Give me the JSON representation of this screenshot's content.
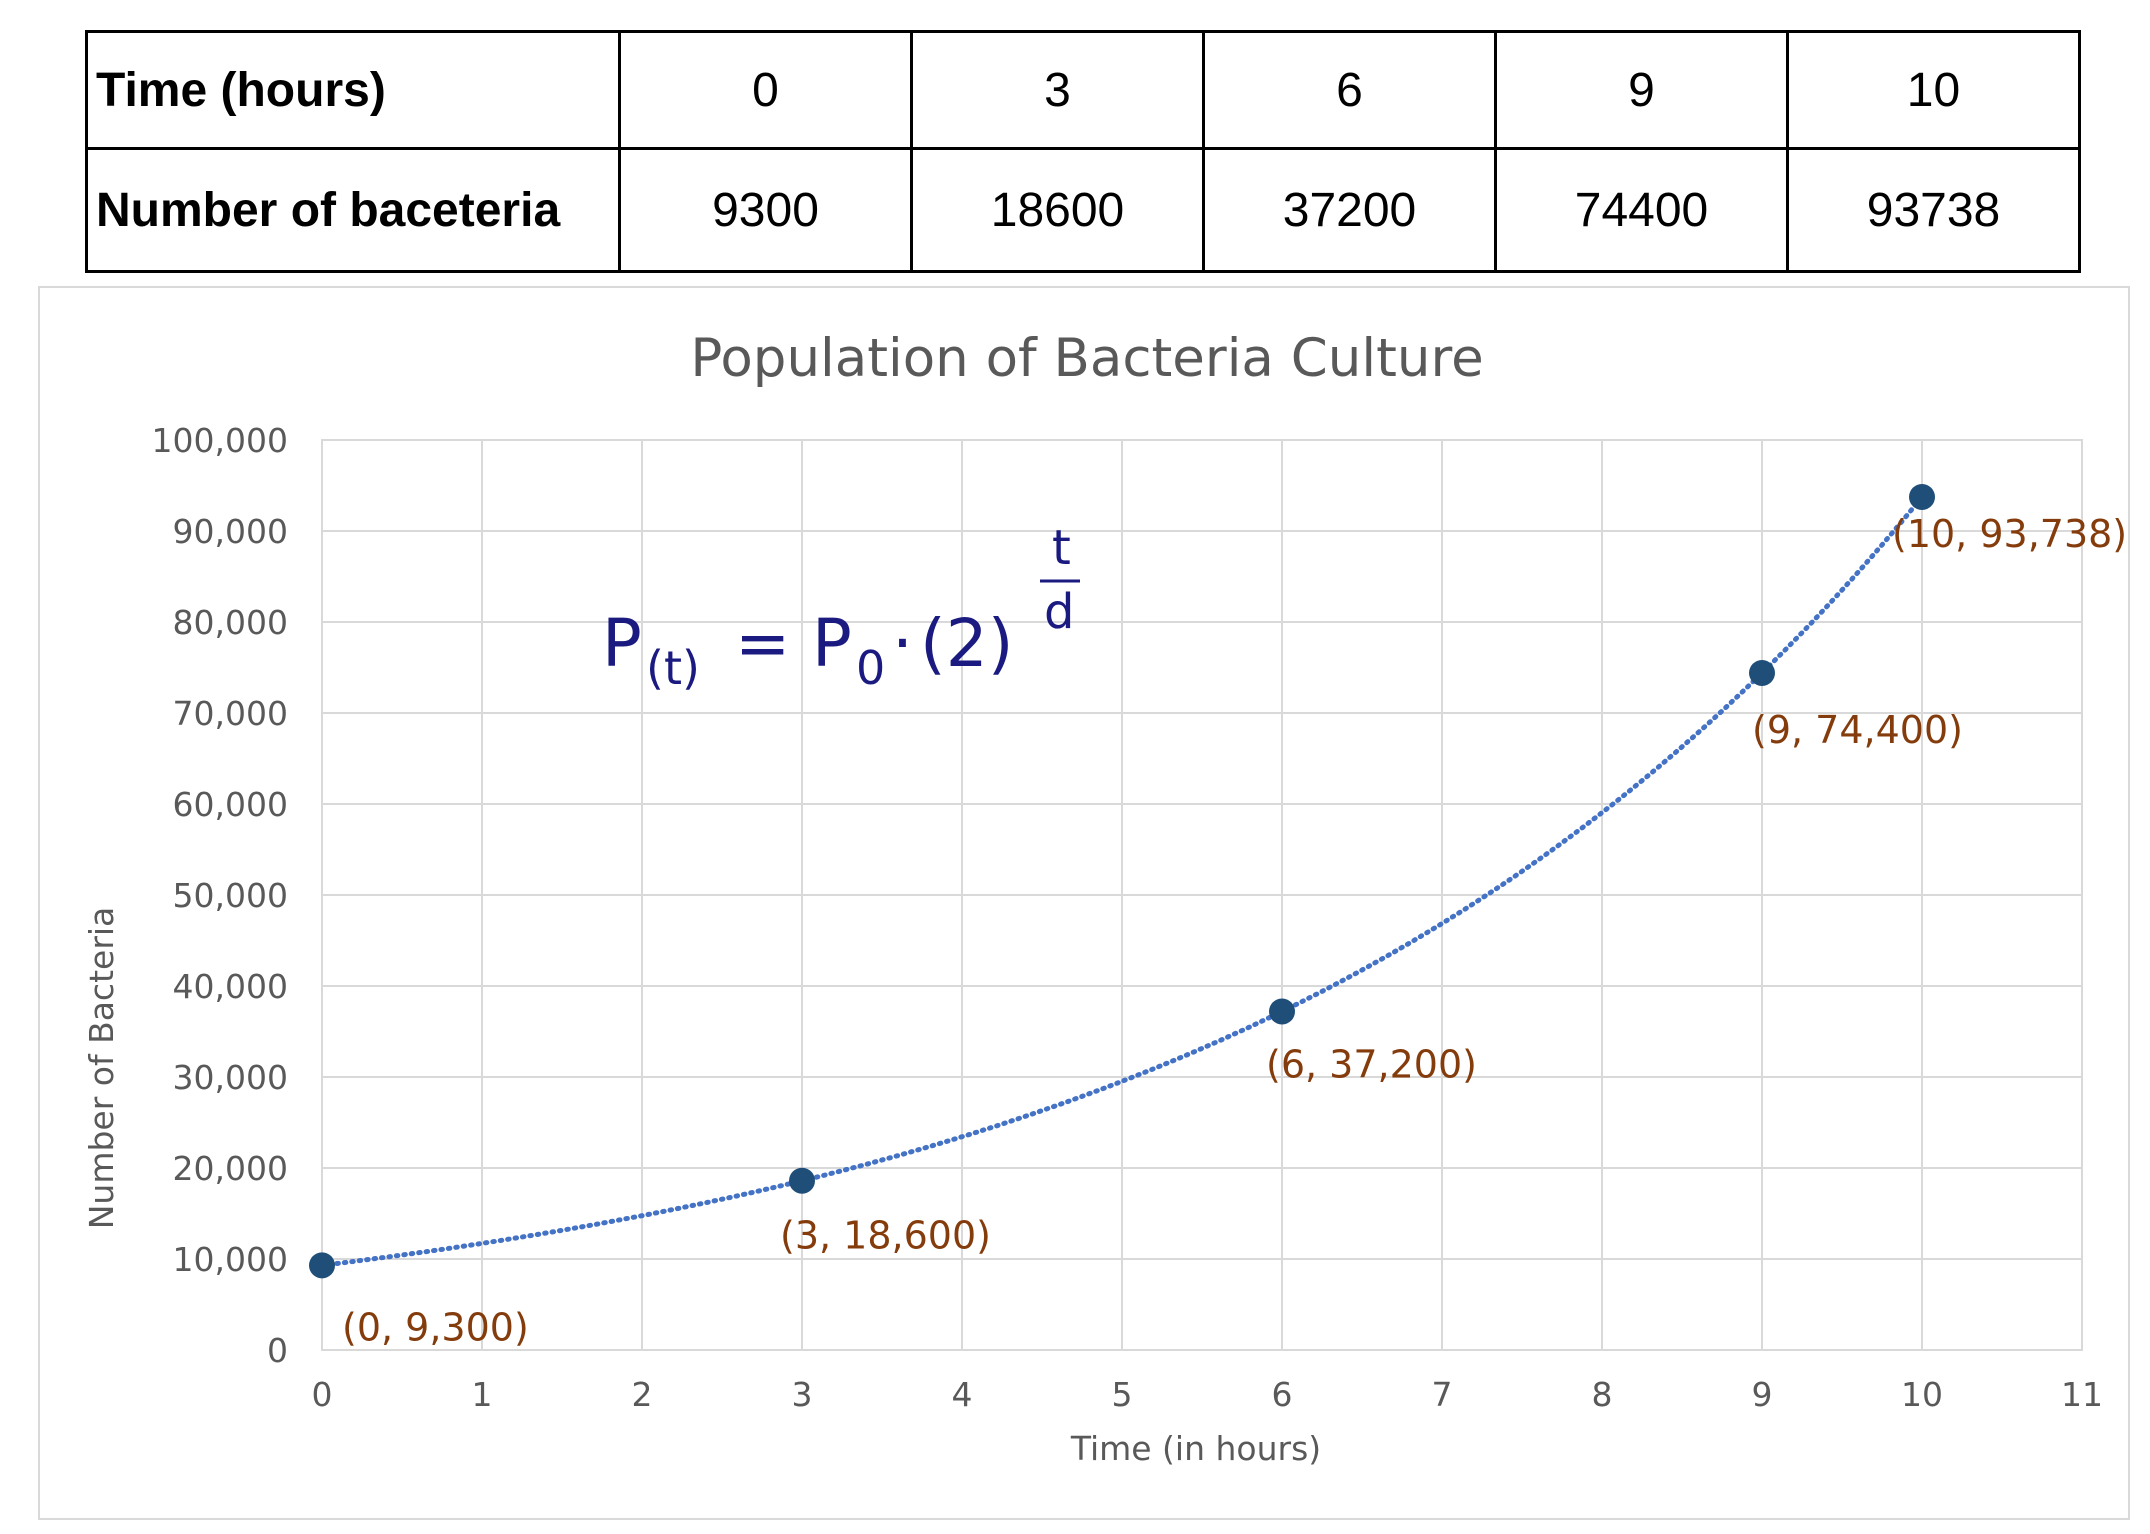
{
  "table": {
    "rows": [
      {
        "label": "Time (hours)",
        "values": [
          "0",
          "3",
          "6",
          "9",
          "10"
        ]
      },
      {
        "label": "Number of baceteria",
        "values": [
          "9300",
          "18600",
          "37200",
          "74400",
          "93738"
        ]
      }
    ]
  },
  "formula": {
    "lhs_var": "P",
    "lhs_sub": "(t)",
    "equals": "=",
    "rhs_var": "P",
    "rhs_sub": "0",
    "dot": "·",
    "base": "(2)",
    "exp_num": "t",
    "exp_den": "d"
  },
  "colors": {
    "marker": "#1f4e79",
    "trendline": "#4472c4",
    "point_label": "#843c0c",
    "formula": "#1a1a80",
    "grid": "#d9d9d9",
    "text": "#595959"
  },
  "chart_data": {
    "type": "scatter",
    "title": "Population of Bacteria Culture",
    "xlabel": "Time (in hours)",
    "ylabel": "Number of Bacteria",
    "xlim": [
      0,
      11
    ],
    "ylim": [
      0,
      100000
    ],
    "x_ticks": [
      "0",
      "1",
      "2",
      "3",
      "4",
      "5",
      "6",
      "7",
      "8",
      "9",
      "10",
      "11"
    ],
    "y_ticks": [
      "0",
      "10,000",
      "20,000",
      "30,000",
      "40,000",
      "50,000",
      "60,000",
      "70,000",
      "80,000",
      "90,000",
      "100,000"
    ],
    "grid": true,
    "trendline": "exponential, dotted",
    "series": [
      {
        "x": [
          0,
          3,
          6,
          9,
          10
        ],
        "y": [
          9300,
          18600,
          37200,
          74400,
          93738
        ],
        "labels": [
          "(0,  9,300)",
          "(3, 18,600)",
          "(6, 37,200)",
          "(9,  74,400)",
          "(10,  93,738)"
        ]
      }
    ]
  }
}
